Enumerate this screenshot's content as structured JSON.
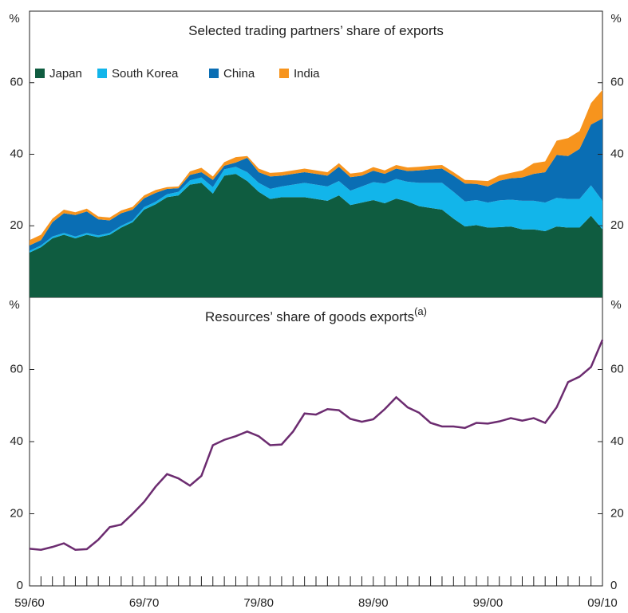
{
  "chart_data": [
    {
      "type": "stacked_area",
      "title": "Selected trading partners’ share of exports",
      "unit": "%",
      "ylim": [
        0,
        80
      ],
      "yticks": [
        20,
        40,
        60
      ],
      "series": [
        {
          "name": "Japan",
          "color": "#0f5c40",
          "values": [
            12.5,
            14,
            16.5,
            17.5,
            16.5,
            17.5,
            16.8,
            17.5,
            19.5,
            21,
            24.5,
            26,
            28,
            28.5,
            31.5,
            32,
            29,
            34,
            34.5,
            32.5,
            29.5,
            27.5,
            28,
            28,
            28,
            27.5,
            27,
            28.5,
            25.8,
            26.5,
            27.2,
            26.3,
            27.6,
            26.8,
            25.5,
            25,
            24.5,
            22,
            19.8,
            20.2,
            19.5,
            19.6,
            19.8,
            19,
            19,
            18.5,
            19.8,
            19.5,
            19.5,
            22.8,
            19
          ]
        },
        {
          "name": "South Korea",
          "color": "#12b5ea",
          "values": [
            0.5,
            0.5,
            0.5,
            0.5,
            0.5,
            0.5,
            0.5,
            0.5,
            0.5,
            0.5,
            0.7,
            0.7,
            0.8,
            1,
            1.2,
            1.5,
            1.8,
            1.8,
            2,
            2.5,
            2.5,
            2.8,
            3,
            3.5,
            4,
            4,
            4,
            4,
            4,
            4.5,
            5,
            5.5,
            5.5,
            5.5,
            6.5,
            7,
            7.5,
            7.5,
            7,
            7,
            7,
            7.5,
            7.5,
            8,
            8,
            8,
            8,
            8,
            8,
            8.5,
            8
          ]
        },
        {
          "name": "China",
          "color": "#0a6eb4",
          "values": [
            1.5,
            1.5,
            4,
            5.5,
            6,
            6,
            4.5,
            3.5,
            3.5,
            3,
            2.5,
            2.5,
            1.5,
            1,
            1.5,
            1.5,
            2,
            1,
            1.2,
            4,
            3,
            3.5,
            3,
            3,
            3,
            3,
            3,
            4,
            3.8,
            3,
            3.2,
            2.7,
            2.9,
            3,
            3.5,
            3.8,
            4,
            4.5,
            5,
            4.5,
            4.5,
            5.5,
            6,
            6.5,
            7.5,
            8.5,
            12,
            12,
            14,
            17,
            23
          ]
        },
        {
          "name": "India",
          "color": "#f7941d",
          "values": [
            1.5,
            1.5,
            1,
            1,
            0.8,
            0.8,
            0.8,
            0.8,
            0.8,
            0.8,
            0.8,
            0.8,
            0.5,
            0.5,
            1,
            1.2,
            1,
            1,
            1.5,
            0.5,
            1,
            1,
            1,
            1,
            1,
            1,
            1,
            1,
            1,
            1,
            1,
            1,
            1,
            1,
            1,
            1,
            1,
            1,
            1,
            1,
            1.5,
            1.5,
            1.5,
            2,
            3,
            3,
            4,
            5,
            5,
            6,
            8
          ]
        }
      ]
    },
    {
      "type": "line",
      "title": "Resources’ share of goods exports",
      "title_note": "(a)",
      "unit": "%",
      "ylim": [
        0,
        80
      ],
      "yticks": [
        0,
        20,
        40,
        60
      ],
      "categories": [
        "59/60",
        null,
        null,
        null,
        null,
        null,
        null,
        null,
        null,
        null,
        "69/70",
        null,
        null,
        null,
        null,
        null,
        null,
        null,
        null,
        null,
        "79/80",
        null,
        null,
        null,
        null,
        null,
        null,
        null,
        null,
        null,
        "89/90",
        null,
        null,
        null,
        null,
        null,
        null,
        null,
        null,
        null,
        "99/00",
        null,
        null,
        null,
        null,
        null,
        null,
        null,
        null,
        null,
        "09/10"
      ],
      "series": [
        {
          "name": "Resources",
          "color": "#6c2c70",
          "values": [
            10.3,
            10,
            10.8,
            11.8,
            10,
            10.2,
            12.8,
            16.3,
            17,
            20,
            23.3,
            27.5,
            31,
            29.8,
            27.8,
            30.5,
            39,
            40.5,
            41.5,
            42.8,
            41.5,
            39,
            39.2,
            42.8,
            47.8,
            47.5,
            49,
            48.7,
            46.3,
            45.5,
            46.2,
            49,
            52.3,
            49.5,
            48,
            45.2,
            44.2,
            44.2,
            43.8,
            45.2,
            45,
            45.6,
            46.5,
            45.8,
            46.5,
            45.2,
            49.5,
            56.5,
            58,
            60.7,
            68.2
          ]
        }
      ]
    }
  ]
}
